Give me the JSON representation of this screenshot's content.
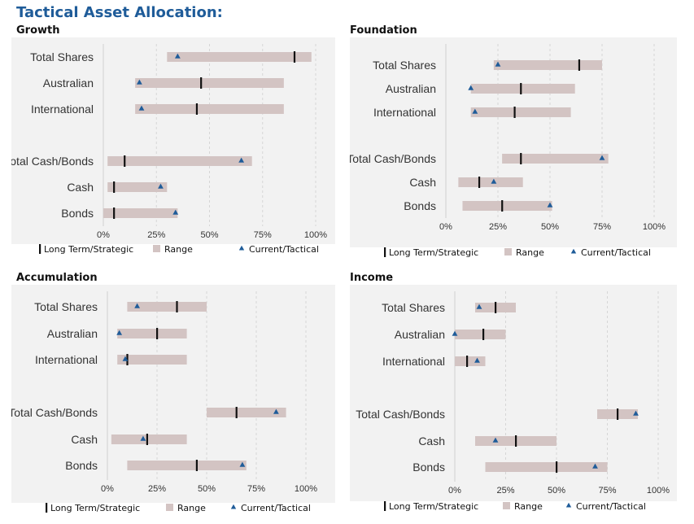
{
  "header": {
    "title": "Tactical Asset Allocation:"
  },
  "legend": {
    "strategic": "Long Term/Strategic",
    "range": "Range",
    "tactical": "Current/Tactical"
  },
  "colors": {
    "range": "#d3c4c3",
    "strategic": "#111111",
    "tactical": "#1f5c99",
    "panel_bg": "#f2f2f2",
    "title": "#1f5c99"
  },
  "chart_data": [
    {
      "type": "bar",
      "title": "Growth",
      "categories": [
        "Total Shares",
        "Australian",
        "International",
        "",
        "Total Cash/Bonds",
        "Cash",
        "Bonds"
      ],
      "range_min": [
        30,
        15,
        15,
        null,
        2,
        2,
        0
      ],
      "range_max": [
        98,
        85,
        85,
        null,
        70,
        30,
        35
      ],
      "strategic": [
        90,
        46,
        44,
        null,
        10,
        5,
        5
      ],
      "tactical": [
        35,
        17,
        18,
        null,
        65,
        27,
        34
      ],
      "x_ticks": [
        "0%",
        "25%",
        "50%",
        "75%",
        "100%"
      ],
      "xlim": [
        0,
        100
      ]
    },
    {
      "type": "bar",
      "title": "Foundation",
      "categories": [
        "Total Shares",
        "Australian",
        "International",
        "",
        "Total Cash/Bonds",
        "Cash",
        "Bonds"
      ],
      "range_min": [
        23,
        12,
        12,
        null,
        27,
        6,
        8
      ],
      "range_max": [
        75,
        62,
        60,
        null,
        78,
        37,
        51
      ],
      "strategic": [
        64,
        36,
        33,
        null,
        36,
        16,
        27
      ],
      "tactical": [
        25,
        12,
        14,
        null,
        75,
        23,
        50
      ],
      "x_ticks": [
        "0%",
        "25%",
        "50%",
        "75%",
        "100%"
      ],
      "xlim": [
        0,
        100
      ]
    },
    {
      "type": "bar",
      "title": "Accumulation",
      "categories": [
        "Total Shares",
        "Australian",
        "International",
        "",
        "Total Cash/Bonds",
        "Cash",
        "Bonds"
      ],
      "range_min": [
        10,
        5,
        5,
        null,
        50,
        2,
        10
      ],
      "range_max": [
        50,
        40,
        40,
        null,
        90,
        40,
        70
      ],
      "strategic": [
        35,
        25,
        10,
        null,
        65,
        20,
        45
      ],
      "tactical": [
        15,
        6,
        9,
        null,
        85,
        18,
        68
      ],
      "x_ticks": [
        "0%",
        "25%",
        "50%",
        "75%",
        "100%"
      ],
      "xlim": [
        0,
        100
      ]
    },
    {
      "type": "bar",
      "title": "Income",
      "categories": [
        "Total Shares",
        "Australian",
        "International",
        "",
        "Total Cash/Bonds",
        "Cash",
        "Bonds"
      ],
      "range_min": [
        10,
        0,
        0,
        null,
        70,
        10,
        15
      ],
      "range_max": [
        30,
        25,
        15,
        null,
        90,
        50,
        75
      ],
      "strategic": [
        20,
        14,
        6,
        null,
        80,
        30,
        50
      ],
      "tactical": [
        12,
        0,
        11,
        null,
        89,
        20,
        69
      ],
      "x_ticks": [
        "0%",
        "25%",
        "50%",
        "75%",
        "100%"
      ],
      "xlim": [
        0,
        100
      ]
    }
  ]
}
